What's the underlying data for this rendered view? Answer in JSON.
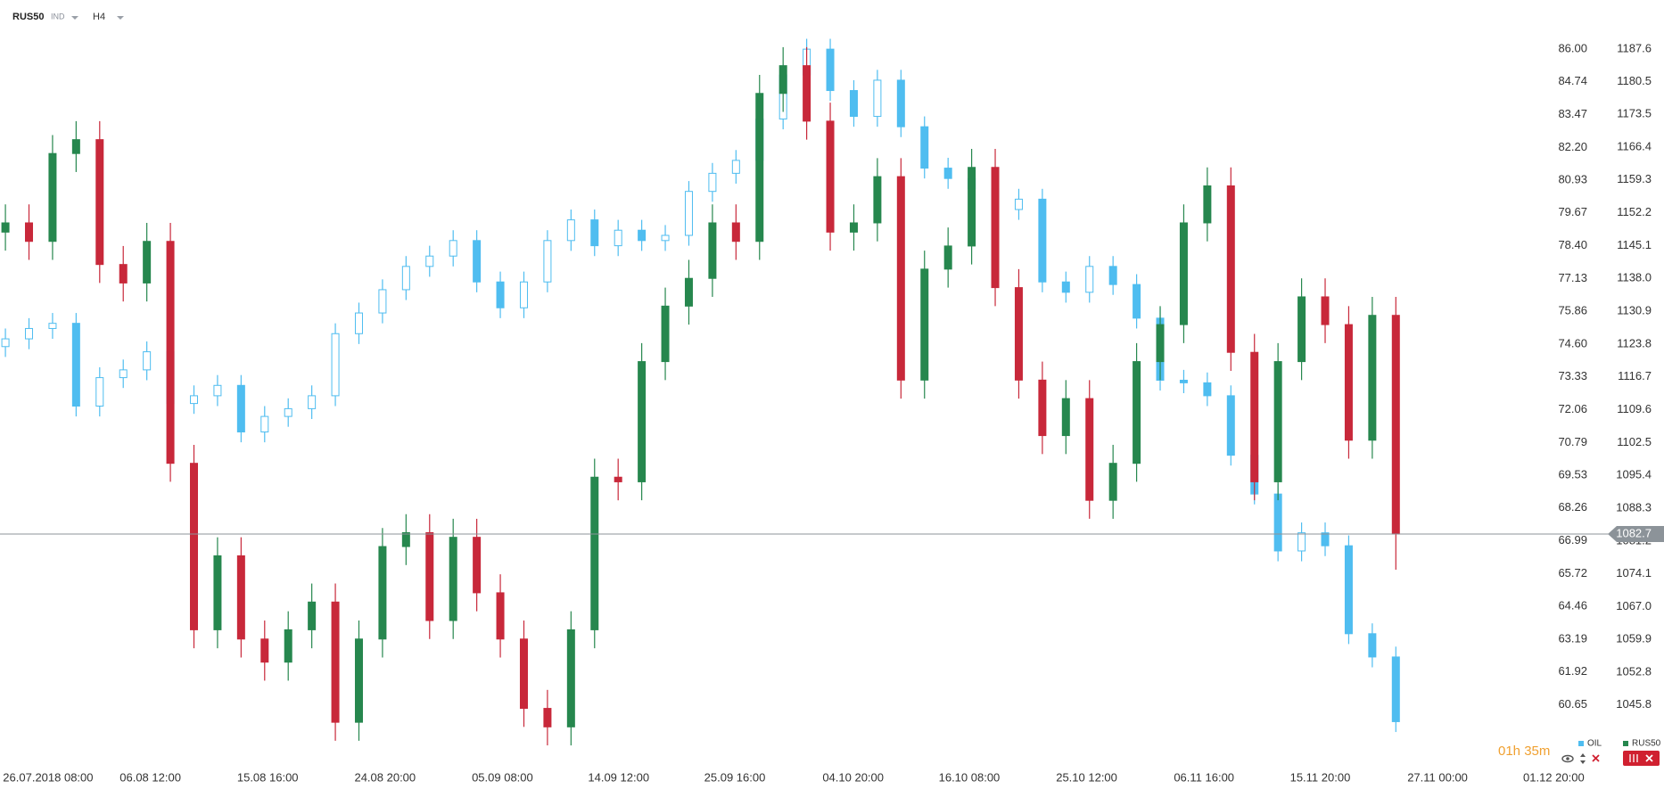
{
  "chart_data": {
    "type": "candlestick",
    "title": "RUS50",
    "instrument_class": "IND",
    "timeframe": "H4",
    "countdown": "01h 35m",
    "grid": false,
    "up_color": "#26874e",
    "down_color": "#c8283a",
    "xlim": [
      -0.23,
      67.2
    ],
    "xticks": [
      {
        "value": 1.81,
        "label": "26.07.2018 08:00"
      },
      {
        "value": 6.15,
        "label": "06.08 12:00"
      },
      {
        "value": 11.13,
        "label": "15.08 16:00"
      },
      {
        "value": 16.11,
        "label": "24.08 20:00"
      },
      {
        "value": 21.09,
        "label": "05.09 08:00"
      },
      {
        "value": 26.02,
        "label": "14.09 12:00"
      },
      {
        "value": 30.95,
        "label": "25.09 16:00"
      },
      {
        "value": 35.97,
        "label": "04.10 20:00"
      },
      {
        "value": 40.9,
        "label": "16.10 08:00"
      },
      {
        "value": 45.88,
        "label": "25.10 12:00"
      },
      {
        "value": 50.86,
        "label": "06.11 16:00"
      },
      {
        "value": 55.79,
        "label": "15.11 20:00"
      },
      {
        "value": 60.77,
        "label": "27.11 00:00"
      },
      {
        "value": 65.7,
        "label": "01.12 20:00"
      }
    ],
    "ylim": [
      1033.35,
      1198.2
    ],
    "yticks": [
      1187.6,
      1180.5,
      1173.5,
      1166.4,
      1159.3,
      1152.2,
      1145.1,
      {
        "value": 1138,
        "label": "1138.0"
      },
      1130.9,
      1123.8,
      1116.7,
      1109.6,
      1102.5,
      1095.4,
      1088.3,
      1081.2,
      1074.1,
      {
        "value": 1067,
        "label": "1067.0"
      },
      1059.9,
      1052.8,
      1045.8
    ],
    "y2lim": [
      58.43,
      87.9
    ],
    "y2ticks": [
      {
        "value": 86,
        "label": "86.00"
      },
      84.74,
      83.47,
      {
        "value": 82.2,
        "label": "82.20"
      },
      80.93,
      79.67,
      {
        "value": 78.4,
        "label": "78.40"
      },
      77.13,
      75.86,
      {
        "value": 74.6,
        "label": "74.60"
      },
      73.33,
      72.06,
      70.79,
      69.53,
      68.26,
      66.99,
      65.72,
      64.46,
      63.19,
      61.92,
      60.65
    ],
    "series": [
      {
        "name": "RUS50",
        "axis": "y",
        "color": "#26874e",
        "open": [
          1148,
          1150,
          1146,
          1165,
          1168,
          1141,
          1137,
          1146,
          1098,
          1062,
          1078,
          1060,
          1055,
          1062,
          1068,
          1042,
          1060,
          1080,
          1083,
          1064,
          1082,
          1070,
          1060,
          1045,
          1041,
          1062,
          1095,
          1094,
          1120,
          1132,
          1138,
          1150,
          1146,
          1178,
          1184,
          1172,
          1148,
          1150,
          1160,
          1116,
          1140,
          1145,
          1162,
          1136,
          1116,
          1104,
          1112,
          1090,
          1098,
          1120,
          1128,
          1150,
          1158,
          1122,
          1094,
          1120,
          1134,
          1128,
          1103,
          1130
        ],
        "high": [
          1154,
          1154,
          1169,
          1172,
          1172,
          1145,
          1150,
          1150,
          1102,
          1082,
          1082,
          1064,
          1066,
          1072,
          1072,
          1064,
          1084,
          1087,
          1087,
          1086,
          1086,
          1074,
          1064,
          1049,
          1066,
          1099,
          1099,
          1124,
          1136,
          1142,
          1154,
          1154,
          1182,
          1188,
          1188,
          1176,
          1154,
          1164,
          1164,
          1144,
          1149,
          1166,
          1166,
          1140,
          1120,
          1116,
          1116,
          1102,
          1124,
          1132,
          1154,
          1162,
          1162,
          1126,
          1124,
          1138,
          1138,
          1132,
          1134,
          1134
        ],
        "low": [
          1144,
          1142,
          1142,
          1161,
          1137,
          1133,
          1133,
          1094,
          1058,
          1058,
          1056,
          1051,
          1051,
          1058,
          1038,
          1038,
          1056,
          1076,
          1060,
          1060,
          1066,
          1056,
          1041,
          1037,
          1037,
          1058,
          1090,
          1090,
          1116,
          1128,
          1134,
          1142,
          1142,
          1174,
          1168,
          1144,
          1144,
          1146,
          1112,
          1112,
          1136,
          1141,
          1132,
          1112,
          1100,
          1100,
          1086,
          1086,
          1094,
          1116,
          1124,
          1146,
          1118,
          1090,
          1090,
          1116,
          1124,
          1099,
          1099,
          1075
        ],
        "close": [
          1150,
          1146,
          1165,
          1168,
          1141,
          1137,
          1146,
          1098,
          1062,
          1078,
          1060,
          1055,
          1062,
          1068,
          1042,
          1060,
          1080,
          1083,
          1064,
          1082,
          1070,
          1060,
          1045,
          1041,
          1062,
          1095,
          1094,
          1120,
          1132,
          1138,
          1150,
          1146,
          1178,
          1184,
          1172,
          1148,
          1150,
          1160,
          1116,
          1140,
          1145,
          1162,
          1136,
          1116,
          1104,
          1112,
          1090,
          1098,
          1120,
          1128,
          1150,
          1158,
          1122,
          1094,
          1120,
          1134,
          1128,
          1103,
          1130,
          1082.7
        ]
      },
      {
        "name": "OIL",
        "axis": "y2",
        "color": "#4fbdf0",
        "open": [
          74.5,
          74.8,
          75.2,
          75.4,
          72.2,
          73.3,
          73.6,
          74.3,
          72.3,
          72.6,
          73.0,
          71.2,
          71.8,
          72.1,
          72.6,
          75.0,
          75.8,
          76.7,
          77.6,
          78.0,
          78.6,
          77.0,
          76.0,
          77.0,
          78.6,
          79.4,
          78.4,
          79.0,
          78.6,
          78.8,
          80.5,
          81.2,
          81.7,
          83.3,
          85.0,
          86.0,
          84.4,
          83.4,
          84.8,
          83.0,
          81.4,
          81.0,
          80.6,
          79.8,
          80.2,
          77.0,
          76.6,
          77.6,
          76.9,
          75.6,
          73.2,
          73.1,
          72.6,
          70.3,
          68.8,
          66.6,
          67.3,
          66.8,
          63.4,
          62.5
        ],
        "high": [
          75.2,
          75.6,
          75.8,
          75.8,
          73.7,
          74.0,
          74.7,
          74.7,
          73.0,
          73.4,
          73.4,
          72.2,
          72.5,
          73.0,
          75.4,
          76.2,
          77.1,
          78.0,
          78.4,
          79.0,
          79.0,
          77.4,
          77.4,
          79.0,
          79.8,
          79.8,
          79.4,
          79.4,
          79.2,
          80.9,
          81.6,
          82.1,
          83.7,
          85.4,
          86.4,
          86.4,
          84.8,
          85.2,
          85.2,
          83.4,
          81.8,
          81.4,
          81.0,
          80.6,
          80.6,
          77.4,
          78.0,
          78.0,
          77.3,
          76.0,
          73.6,
          73.5,
          73.0,
          70.7,
          69.2,
          67.7,
          67.7,
          67.2,
          63.8,
          62.9
        ],
        "low": [
          74.1,
          74.4,
          74.8,
          71.8,
          71.8,
          72.9,
          73.2,
          71.9,
          71.9,
          72.2,
          70.8,
          70.8,
          71.4,
          71.7,
          72.2,
          74.6,
          75.4,
          76.3,
          77.2,
          77.6,
          76.6,
          75.6,
          75.6,
          76.6,
          78.2,
          78.0,
          78.0,
          78.2,
          78.2,
          78.4,
          80.1,
          80.8,
          81.3,
          82.9,
          84.6,
          84.0,
          83.0,
          83.0,
          82.6,
          81.0,
          80.6,
          80.2,
          79.4,
          79.4,
          76.6,
          76.2,
          76.2,
          76.5,
          75.2,
          72.8,
          72.7,
          72.2,
          69.9,
          68.4,
          66.2,
          66.2,
          66.4,
          63.0,
          62.1,
          59.6
        ],
        "close": [
          74.8,
          75.2,
          75.4,
          72.2,
          73.3,
          73.6,
          74.3,
          72.3,
          72.6,
          73.0,
          71.2,
          71.8,
          72.1,
          72.6,
          75.0,
          75.8,
          76.7,
          77.6,
          78.0,
          78.6,
          77.0,
          76.0,
          77.0,
          78.6,
          79.4,
          78.4,
          79.0,
          78.6,
          78.8,
          80.5,
          81.2,
          81.7,
          83.3,
          85.0,
          86.0,
          84.4,
          83.4,
          84.8,
          83.0,
          81.4,
          81.0,
          80.6,
          79.8,
          80.2,
          77.0,
          76.6,
          77.6,
          76.9,
          75.6,
          73.2,
          73.1,
          72.6,
          70.3,
          68.8,
          66.6,
          67.3,
          66.8,
          63.4,
          62.5,
          60.0
        ]
      }
    ]
  }
}
